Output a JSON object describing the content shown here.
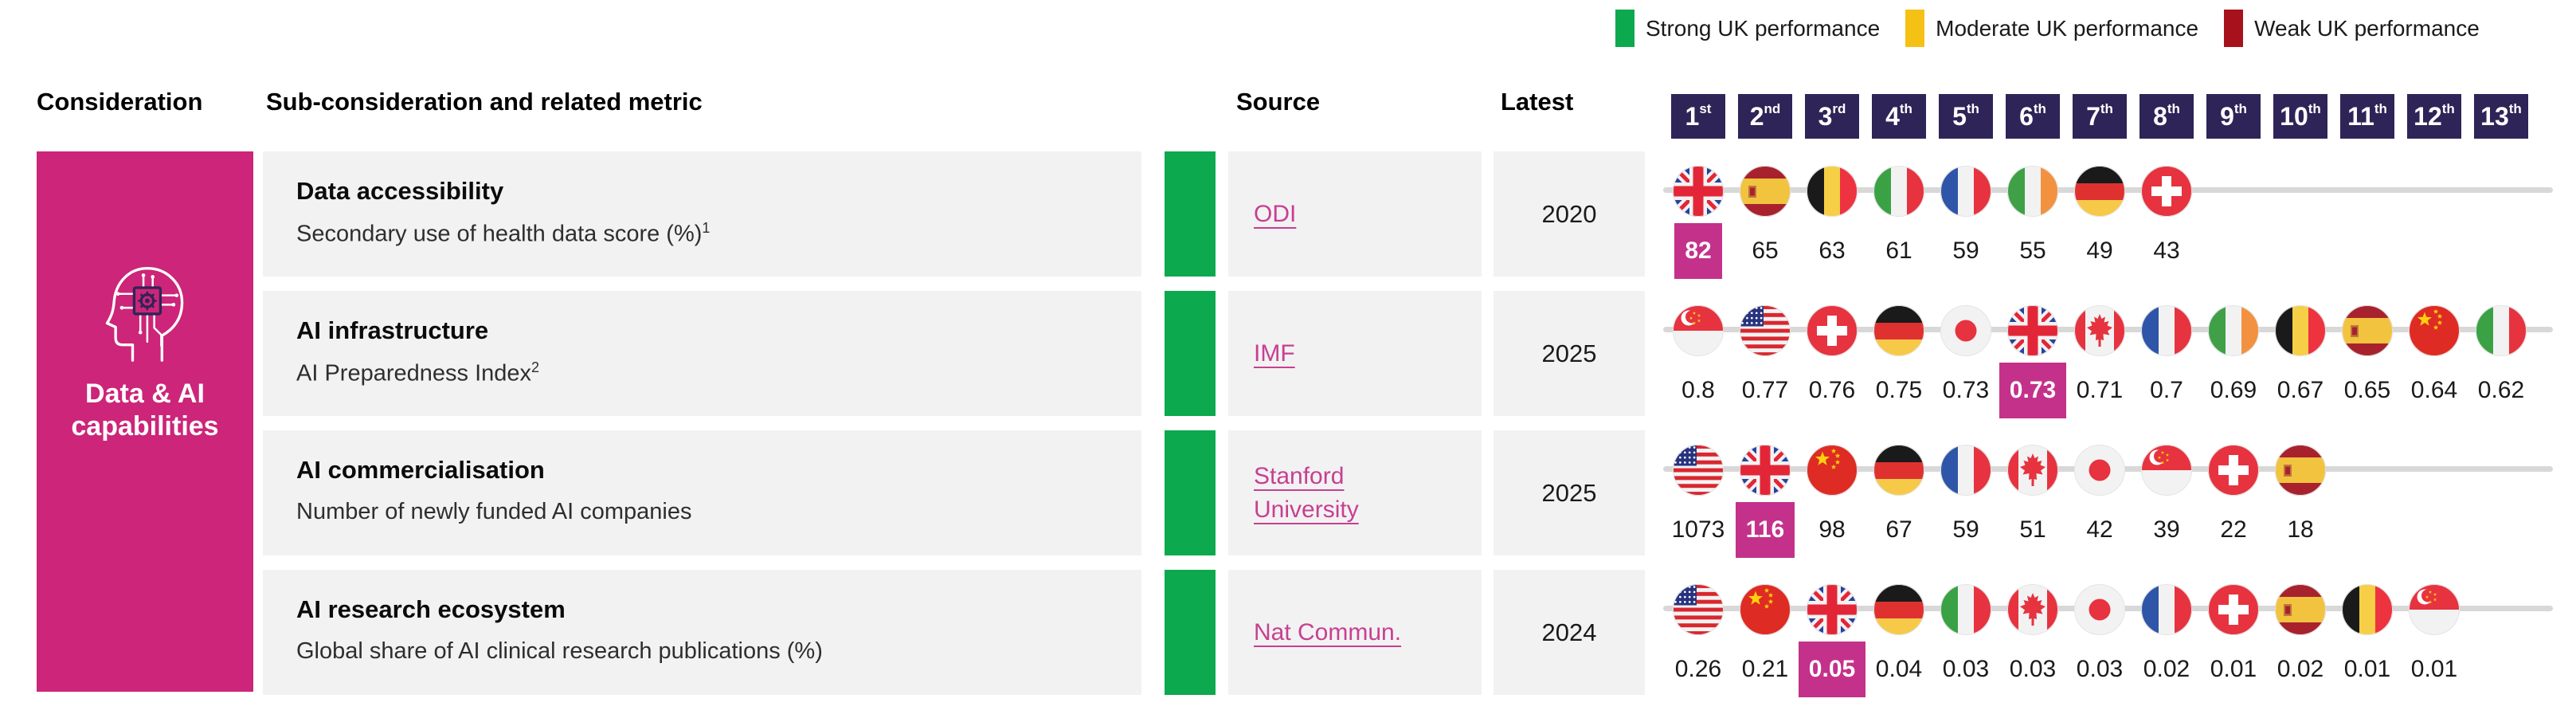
{
  "legend": [
    {
      "icon": "strong-performance-swatch",
      "label": "Strong UK performance",
      "color": "#0CA94E"
    },
    {
      "icon": "moderate-performance-swatch",
      "label": "Moderate UK performance",
      "color": "#F6C115"
    },
    {
      "icon": "weak-performance-swatch",
      "label": "Weak UK performance",
      "color": "#A6111B"
    }
  ],
  "header": {
    "consideration": "Consideration",
    "sub_consideration": "Sub-consideration and related metric",
    "source": "Source",
    "latest": "Latest",
    "ranks": [
      {
        "num": "1",
        "suffix": "st"
      },
      {
        "num": "2",
        "suffix": "nd"
      },
      {
        "num": "3",
        "suffix": "rd"
      },
      {
        "num": "4",
        "suffix": "th"
      },
      {
        "num": "5",
        "suffix": "th"
      },
      {
        "num": "6",
        "suffix": "th"
      },
      {
        "num": "7",
        "suffix": "th"
      },
      {
        "num": "8",
        "suffix": "th"
      },
      {
        "num": "9",
        "suffix": "th"
      },
      {
        "num": "10",
        "suffix": "th"
      },
      {
        "num": "11",
        "suffix": "th"
      },
      {
        "num": "12",
        "suffix": "th"
      },
      {
        "num": "13",
        "suffix": "th"
      }
    ]
  },
  "consideration_block": {
    "label": "Data & AI capabilities",
    "icon": "ai-head-icon",
    "color": "#CC2579"
  },
  "colors": {
    "block_pink": "#CC2579",
    "highlight_pink": "#C4318B",
    "link_pink": "#C73F92",
    "rank_badge_bg": "#2E2457",
    "cell_bg": "#F2F2F2",
    "line_gray": "#D8D8D8",
    "strong": "#0CA94E",
    "moderate": "#F6C115",
    "weak": "#A6111B"
  },
  "chart_data": [
    {
      "type": "table",
      "title": "Data accessibility",
      "metric": "Secondary use of health data score (%)",
      "footnote_marker": "1",
      "uk_performance": "strong",
      "source": "ODI",
      "latest": "2020",
      "ranking": [
        {
          "country": "United Kingdom",
          "flag": "gb",
          "value": "82",
          "uk": true
        },
        {
          "country": "Spain",
          "flag": "es",
          "value": "65"
        },
        {
          "country": "Belgium",
          "flag": "be",
          "value": "63"
        },
        {
          "country": "Italy",
          "flag": "it",
          "value": "61"
        },
        {
          "country": "France",
          "flag": "fr",
          "value": "59"
        },
        {
          "country": "Ireland",
          "flag": "ie",
          "value": "55"
        },
        {
          "country": "Germany",
          "flag": "de",
          "value": "49"
        },
        {
          "country": "Switzerland",
          "flag": "ch",
          "value": "43"
        }
      ]
    },
    {
      "type": "table",
      "title": "AI infrastructure",
      "metric": "AI Preparedness Index",
      "footnote_marker": "2",
      "uk_performance": "strong",
      "source": "IMF",
      "latest": "2025",
      "ranking": [
        {
          "country": "Singapore",
          "flag": "sg",
          "value": "0.8"
        },
        {
          "country": "United States",
          "flag": "us",
          "value": "0.77"
        },
        {
          "country": "Switzerland",
          "flag": "ch",
          "value": "0.76"
        },
        {
          "country": "Germany",
          "flag": "de",
          "value": "0.75"
        },
        {
          "country": "Japan",
          "flag": "jp",
          "value": "0.73"
        },
        {
          "country": "United Kingdom",
          "flag": "gb",
          "value": "0.73",
          "uk": true
        },
        {
          "country": "Canada",
          "flag": "ca",
          "value": "0.71"
        },
        {
          "country": "France",
          "flag": "fr",
          "value": "0.7"
        },
        {
          "country": "Ireland",
          "flag": "ie",
          "value": "0.69"
        },
        {
          "country": "Belgium",
          "flag": "be",
          "value": "0.67"
        },
        {
          "country": "Spain",
          "flag": "es",
          "value": "0.65"
        },
        {
          "country": "China",
          "flag": "cn",
          "value": "0.64"
        },
        {
          "country": "Italy",
          "flag": "it",
          "value": "0.62"
        }
      ]
    },
    {
      "type": "table",
      "title": "AI commercialisation",
      "metric": "Number of newly funded AI companies",
      "footnote_marker": "",
      "uk_performance": "strong",
      "source": "Stanford University",
      "latest": "2025",
      "ranking": [
        {
          "country": "United States",
          "flag": "us",
          "value": "1073"
        },
        {
          "country": "United Kingdom",
          "flag": "gb",
          "value": "116",
          "uk": true
        },
        {
          "country": "China",
          "flag": "cn",
          "value": "98"
        },
        {
          "country": "Germany",
          "flag": "de",
          "value": "67"
        },
        {
          "country": "France",
          "flag": "fr",
          "value": "59"
        },
        {
          "country": "Canada",
          "flag": "ca",
          "value": "51"
        },
        {
          "country": "Japan",
          "flag": "jp",
          "value": "42"
        },
        {
          "country": "Singapore",
          "flag": "sg",
          "value": "39"
        },
        {
          "country": "Switzerland",
          "flag": "ch",
          "value": "22"
        },
        {
          "country": "Spain",
          "flag": "es",
          "value": "18"
        }
      ]
    },
    {
      "type": "table",
      "title": "AI research ecosystem",
      "metric": "Global share of AI clinical research publications (%)",
      "footnote_marker": "",
      "uk_performance": "strong",
      "source": "Nat Commun.",
      "latest": "2024",
      "ranking": [
        {
          "country": "United States",
          "flag": "us",
          "value": "0.26"
        },
        {
          "country": "China",
          "flag": "cn",
          "value": "0.21"
        },
        {
          "country": "United Kingdom",
          "flag": "gb",
          "value": "0.05",
          "uk": true
        },
        {
          "country": "Germany",
          "flag": "de",
          "value": "0.04"
        },
        {
          "country": "Italy",
          "flag": "it",
          "value": "0.03"
        },
        {
          "country": "Canada",
          "flag": "ca",
          "value": "0.03"
        },
        {
          "country": "Japan",
          "flag": "jp",
          "value": "0.03"
        },
        {
          "country": "France",
          "flag": "fr",
          "value": "0.02"
        },
        {
          "country": "Switzerland",
          "flag": "ch",
          "value": "0.01"
        },
        {
          "country": "Spain",
          "flag": "es",
          "value": "0.02"
        },
        {
          "country": "Belgium",
          "flag": "be",
          "value": "0.01"
        },
        {
          "country": "Singapore",
          "flag": "sg",
          "value": "0.01"
        }
      ]
    }
  ]
}
